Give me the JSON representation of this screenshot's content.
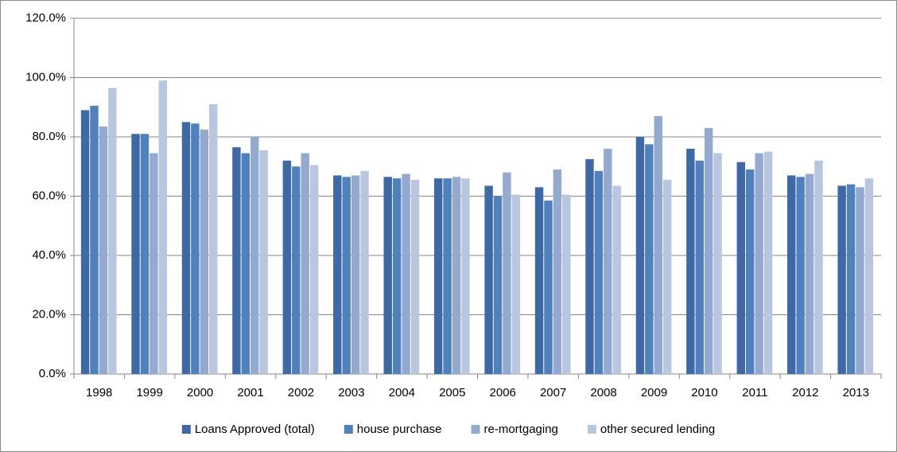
{
  "chart_data": {
    "type": "bar",
    "categories": [
      "1998",
      "1999",
      "2000",
      "2001",
      "2002",
      "2003",
      "2004",
      "2005",
      "2006",
      "2007",
      "2008",
      "2009",
      "2010",
      "2011",
      "2012",
      "2013"
    ],
    "series": [
      {
        "name": "Loans Approved (total)",
        "color": "#3d6aa6",
        "values": [
          89,
          81,
          85,
          76.5,
          72,
          67,
          66.5,
          66,
          63.5,
          63,
          72.5,
          80,
          76,
          71.5,
          67,
          63.5
        ]
      },
      {
        "name": "house purchase",
        "color": "#4f81bd",
        "values": [
          90.5,
          81,
          84.5,
          74.5,
          70,
          66.5,
          66,
          66,
          60,
          58.5,
          68.5,
          77.5,
          72,
          69,
          66.5,
          64
        ]
      },
      {
        "name": "re-mortgaging",
        "color": "#93a9d0",
        "values": [
          83.5,
          74.5,
          82.5,
          80,
          74.5,
          67,
          67.5,
          66.5,
          68,
          69,
          76,
          87,
          83,
          74.5,
          67.5,
          63
        ]
      },
      {
        "name": "other secured lending",
        "color": "#b9c6e0",
        "values": [
          96.5,
          99,
          91,
          75.5,
          70.5,
          68.5,
          65.5,
          66,
          60.5,
          60.5,
          63.5,
          65.5,
          74.5,
          75,
          72,
          66
        ]
      }
    ],
    "ylim": [
      0,
      120
    ],
    "yticks": [
      {
        "value": 0,
        "label": "0.0%"
      },
      {
        "value": 20,
        "label": "20.0%"
      },
      {
        "value": 40,
        "label": "40.0%"
      },
      {
        "value": 60,
        "label": "60.0%"
      },
      {
        "value": 80,
        "label": "80.0%"
      },
      {
        "value": 100,
        "label": "100.0%"
      },
      {
        "value": 120,
        "label": "120.0%"
      }
    ],
    "grid": true,
    "legend": "bottom"
  }
}
